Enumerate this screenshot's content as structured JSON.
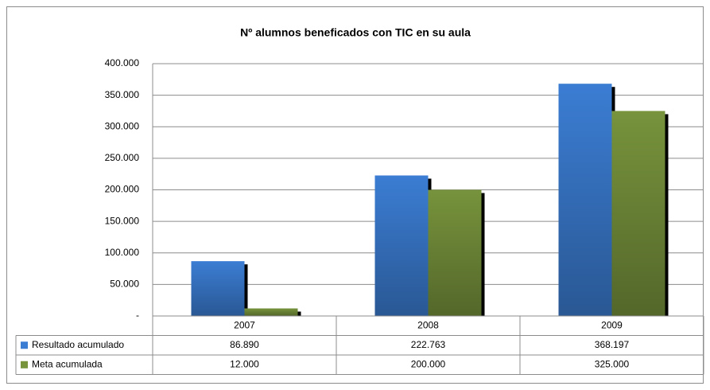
{
  "chart_data": {
    "type": "bar",
    "title": "Nº alumnos beneficados con TIC en su aula",
    "categories": [
      "2007",
      "2008",
      "2009"
    ],
    "series": [
      {
        "name": "Resultado acumulado",
        "color": "#3b7dd3",
        "values": [
          86890,
          222763,
          368197
        ],
        "value_labels": [
          "86.890",
          "222.763",
          "368.197"
        ]
      },
      {
        "name": "Meta acumulada",
        "color": "#77933c",
        "values": [
          12000,
          200000,
          325000
        ],
        "value_labels": [
          "12.000",
          "200.000",
          "325.000"
        ]
      }
    ],
    "ylim": [
      0,
      400000
    ],
    "yticks": [
      {
        "value": 0,
        "label": "-"
      },
      {
        "value": 50000,
        "label": "50.000"
      },
      {
        "value": 100000,
        "label": "100.000"
      },
      {
        "value": 150000,
        "label": "150.000"
      },
      {
        "value": 200000,
        "label": "200.000"
      },
      {
        "value": 250000,
        "label": "250.000"
      },
      {
        "value": 300000,
        "label": "300.000"
      },
      {
        "value": 350000,
        "label": "350.000"
      },
      {
        "value": 400000,
        "label": "400.000"
      }
    ],
    "grid": true
  }
}
